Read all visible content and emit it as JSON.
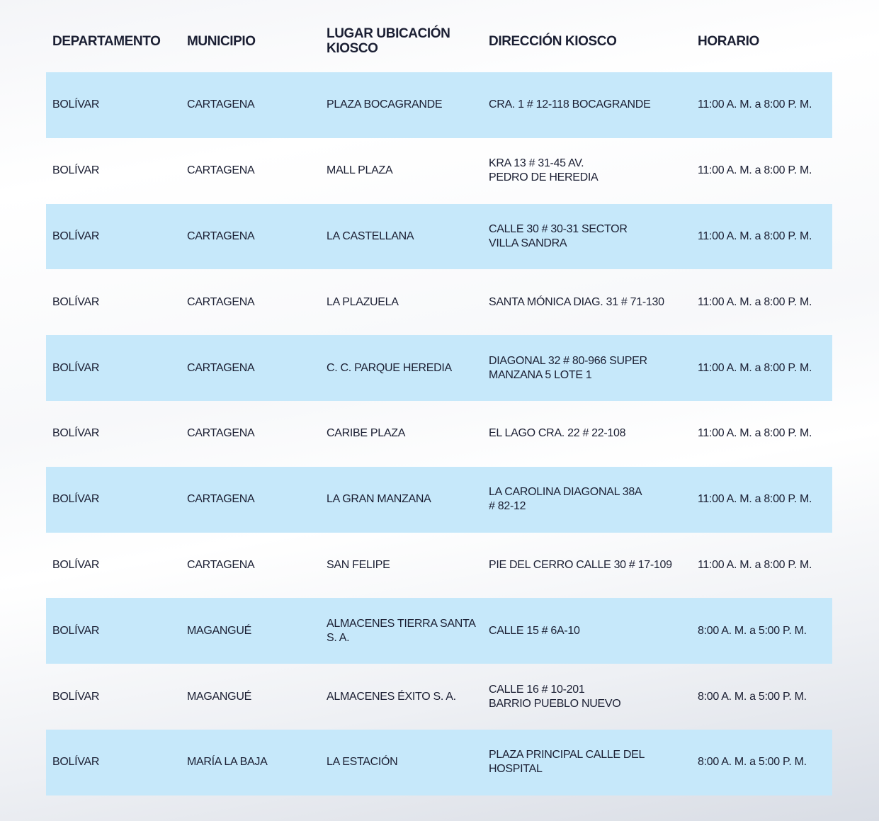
{
  "table": {
    "headers": [
      "DEPARTAMENTO",
      "MUNICIPIO",
      "LUGAR UBICACIÓN\nKIOSCO",
      "DIRECCIÓN KIOSCO",
      "HORARIO"
    ],
    "rows": [
      [
        "BOLÍVAR",
        "CARTAGENA",
        "PLAZA BOCAGRANDE",
        "CRA. 1 # 12-118 BOCAGRANDE",
        "11:00 A. M. a 8:00 P. M."
      ],
      [
        "BOLÍVAR",
        "CARTAGENA",
        "MALL PLAZA",
        "KRA 13 # 31-45 AV.\nPEDRO DE HEREDIA",
        "11:00 A. M. a 8:00 P. M."
      ],
      [
        "BOLÍVAR",
        "CARTAGENA",
        "LA CASTELLANA",
        "CALLE 30 # 30-31 SECTOR\nVILLA SANDRA",
        "11:00 A. M. a 8:00 P. M."
      ],
      [
        "BOLÍVAR",
        "CARTAGENA",
        "LA PLAZUELA",
        "SANTA MÓNICA DIAG. 31 # 71-130",
        "11:00 A. M. a 8:00 P. M."
      ],
      [
        "BOLÍVAR",
        "CARTAGENA",
        "C. C. PARQUE HEREDIA",
        "DIAGONAL 32 # 80-966 SUPER\nMANZANA 5 LOTE 1",
        "11:00 A. M. a 8:00 P. M."
      ],
      [
        "BOLÍVAR",
        "CARTAGENA",
        "CARIBE PLAZA",
        "EL LAGO CRA. 22 # 22-108",
        "11:00 A. M. a 8:00 P. M."
      ],
      [
        "BOLÍVAR",
        "CARTAGENA",
        "LA GRAN MANZANA",
        "LA CAROLINA DIAGONAL 38A\n# 82-12",
        "11:00 A. M. a 8:00 P. M."
      ],
      [
        "BOLÍVAR",
        "CARTAGENA",
        "SAN FELIPE",
        "PIE DEL CERRO CALLE 30 # 17-109",
        "11:00 A. M. a 8:00 P. M."
      ],
      [
        "BOLÍVAR",
        "MAGANGUÉ",
        "ALMACENES TIERRA SANTA\nS. A.",
        "CALLE 15 # 6A-10",
        "8:00 A. M. a 5:00 P. M."
      ],
      [
        "BOLÍVAR",
        "MAGANGUÉ",
        "ALMACENES ÉXITO S. A.",
        "CALLE 16 # 10-201\nBARRIO PUEBLO NUEVO",
        "8:00 A. M. a 5:00 P. M."
      ],
      [
        "BOLÍVAR",
        "MARÍA LA BAJA",
        "LA ESTACIÓN",
        " PLAZA PRINCIPAL CALLE DEL\nHOSPITAL",
        "8:00 A. M. a 5:00 P. M."
      ]
    ]
  },
  "colors": {
    "row_highlight": "#c6e8fa",
    "text": "#1b1f33"
  }
}
